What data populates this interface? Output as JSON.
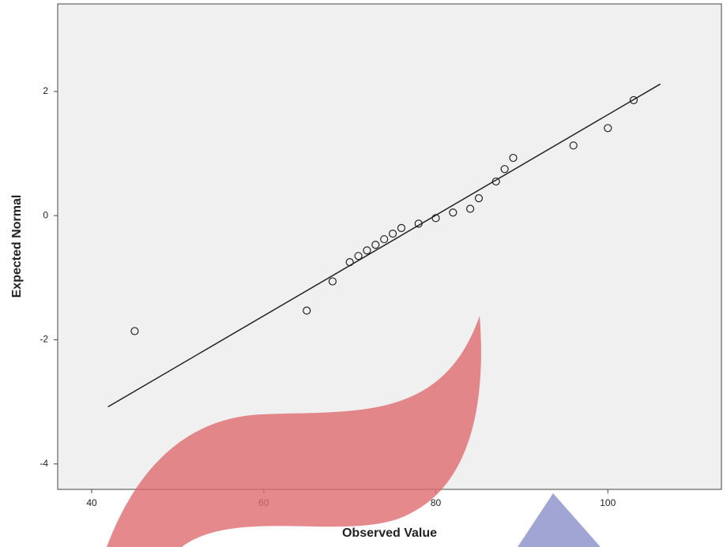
{
  "chart_data": {
    "type": "scatter",
    "x_label": "Observed Value",
    "y_label": "Expected Normal",
    "x": [
      45,
      65,
      68,
      70,
      71,
      72,
      73,
      74,
      75,
      76,
      78,
      80,
      82,
      84,
      85,
      87,
      88,
      89,
      96,
      100,
      103
    ],
    "values": [
      -1.86,
      -1.53,
      -1.06,
      -0.75,
      -0.65,
      -0.56,
      -0.47,
      -0.38,
      -0.29,
      -0.2,
      -0.13,
      -0.04,
      0.05,
      0.11,
      0.28,
      0.55,
      0.75,
      0.93,
      1.13,
      1.41,
      1.86
    ],
    "reference_line": {
      "x": [
        41.9,
        106.1
      ],
      "values": [
        -3.08,
        2.12
      ]
    },
    "xlim": [
      36.05,
      113.2
    ],
    "ylim": [
      -4.41,
      3.41
    ],
    "xticks": [
      40,
      60,
      80,
      100
    ],
    "yticks": [
      2,
      0,
      -2,
      -4
    ],
    "color": "#222222"
  }
}
